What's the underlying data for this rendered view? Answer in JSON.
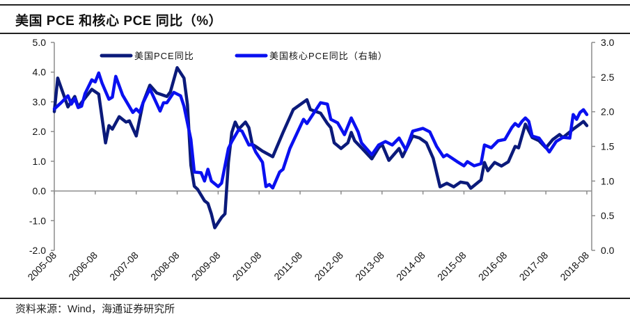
{
  "title": "美国 PCE 和核心 PCE 同比（%）",
  "source": "资料来源：Wind，海通证券研究所",
  "chart_data": {
    "type": "line",
    "title": "美国 PCE 和核心 PCE 同比（%）",
    "xlabel": "",
    "ylabel": "",
    "x_range": [
      "2005-08",
      "2018-08"
    ],
    "x_ticks": [
      "2005-08",
      "2006-08",
      "2007-08",
      "2008-08",
      "2009-08",
      "2010-08",
      "2011-08",
      "2012-08",
      "2013-08",
      "2014-08",
      "2015-08",
      "2016-08",
      "2017-08",
      "2018-08"
    ],
    "y_left": {
      "ylim": [
        -2,
        5
      ],
      "ticks": [
        "5.0",
        "4.0",
        "3.0",
        "2.0",
        "1.0",
        "0.0",
        "-1.0",
        "-2.0"
      ]
    },
    "y_right": {
      "ylim": [
        0,
        3
      ],
      "ticks": [
        "3.0",
        "2.5",
        "2.0",
        "1.5",
        "1.0",
        "0.5",
        "0.0"
      ]
    },
    "grid": false,
    "legend_position": "top",
    "series": [
      {
        "name": "美国PCE同比",
        "axis": "left",
        "color": "#0b1a7a",
        "points": [
          [
            "2005-08",
            2.67
          ],
          [
            "2005-09",
            3.8
          ],
          [
            "2005-12",
            2.83
          ],
          [
            "2006-02",
            3.18
          ],
          [
            "2006-03",
            2.83
          ],
          [
            "2006-07",
            3.42
          ],
          [
            "2006-09",
            3.26
          ],
          [
            "2006-11",
            1.62
          ],
          [
            "2006-12",
            2.2
          ],
          [
            "2007-01",
            2.08
          ],
          [
            "2007-03",
            2.5
          ],
          [
            "2007-05",
            2.32
          ],
          [
            "2007-06",
            2.36
          ],
          [
            "2007-08",
            1.85
          ],
          [
            "2007-10",
            2.97
          ],
          [
            "2007-12",
            3.56
          ],
          [
            "2008-02",
            3.3
          ],
          [
            "2008-05",
            3.18
          ],
          [
            "2008-06",
            3.33
          ],
          [
            "2008-08",
            4.15
          ],
          [
            "2008-10",
            3.8
          ],
          [
            "2008-11",
            2.9
          ],
          [
            "2008-12",
            0.87
          ],
          [
            "2009-01",
            0.16
          ],
          [
            "2009-02",
            0.05
          ],
          [
            "2009-04",
            -0.33
          ],
          [
            "2009-05",
            -0.42
          ],
          [
            "2009-06",
            -0.77
          ],
          [
            "2009-07",
            -1.24
          ],
          [
            "2009-09",
            -0.89
          ],
          [
            "2009-10",
            -0.77
          ],
          [
            "2009-11",
            0.96
          ],
          [
            "2009-12",
            1.97
          ],
          [
            "2010-01",
            2.32
          ],
          [
            "2010-02",
            2.08
          ],
          [
            "2010-04",
            2.32
          ],
          [
            "2010-05",
            2.13
          ],
          [
            "2010-06",
            1.57
          ],
          [
            "2010-07",
            1.5
          ],
          [
            "2010-09",
            1.34
          ],
          [
            "2010-12",
            1.15
          ],
          [
            "2011-01",
            1.43
          ],
          [
            "2011-03",
            1.97
          ],
          [
            "2011-06",
            2.74
          ],
          [
            "2011-10",
            3.07
          ],
          [
            "2011-11",
            2.74
          ],
          [
            "2012-02",
            2.62
          ],
          [
            "2012-04",
            2.27
          ],
          [
            "2012-05",
            2.13
          ],
          [
            "2012-06",
            1.62
          ],
          [
            "2012-08",
            1.43
          ],
          [
            "2012-10",
            1.62
          ],
          [
            "2012-11",
            1.97
          ],
          [
            "2012-12",
            1.69
          ],
          [
            "2013-02",
            1.45
          ],
          [
            "2013-05",
            1.08
          ],
          [
            "2013-07",
            1.45
          ],
          [
            "2013-08",
            1.57
          ],
          [
            "2013-10",
            1.03
          ],
          [
            "2014-01",
            1.43
          ],
          [
            "2014-02",
            1.15
          ],
          [
            "2014-05",
            1.85
          ],
          [
            "2014-07",
            1.78
          ],
          [
            "2014-09",
            1.62
          ],
          [
            "2014-11",
            1.1
          ],
          [
            "2015-01",
            0.14
          ],
          [
            "2015-03",
            0.26
          ],
          [
            "2015-05",
            0.14
          ],
          [
            "2015-07",
            0.3
          ],
          [
            "2015-09",
            0.26
          ],
          [
            "2015-10",
            0.09
          ],
          [
            "2016-01",
            0.37
          ],
          [
            "2016-02",
            0.96
          ],
          [
            "2016-03",
            0.68
          ],
          [
            "2016-05",
            0.96
          ],
          [
            "2016-07",
            0.84
          ],
          [
            "2016-09",
            0.98
          ],
          [
            "2016-11",
            1.5
          ],
          [
            "2016-12",
            1.45
          ],
          [
            "2017-02",
            2.25
          ],
          [
            "2017-04",
            1.8
          ],
          [
            "2017-06",
            1.69
          ],
          [
            "2017-08",
            1.45
          ],
          [
            "2017-10",
            1.73
          ],
          [
            "2017-12",
            1.9
          ],
          [
            "2018-01",
            1.8
          ],
          [
            "2018-04",
            2.08
          ],
          [
            "2018-06",
            2.25
          ],
          [
            "2018-07",
            2.34
          ],
          [
            "2018-08",
            2.2
          ]
        ]
      },
      {
        "name": "美国核心PCE同比（右轴）",
        "axis": "right",
        "color": "#0a10f0",
        "points": [
          [
            "2005-08",
            2.04
          ],
          [
            "2005-10",
            2.13
          ],
          [
            "2005-12",
            2.23
          ],
          [
            "2006-01",
            2.11
          ],
          [
            "2006-02",
            2.19
          ],
          [
            "2006-03",
            2.06
          ],
          [
            "2006-04",
            2.08
          ],
          [
            "2006-05",
            2.26
          ],
          [
            "2006-07",
            2.46
          ],
          [
            "2006-08",
            2.43
          ],
          [
            "2006-09",
            2.56
          ],
          [
            "2006-10",
            2.41
          ],
          [
            "2006-12",
            2.18
          ],
          [
            "2007-01",
            2.21
          ],
          [
            "2007-02",
            2.51
          ],
          [
            "2007-04",
            2.24
          ],
          [
            "2007-07",
            1.99
          ],
          [
            "2007-08",
            2.04
          ],
          [
            "2007-09",
            1.99
          ],
          [
            "2007-10",
            2.13
          ],
          [
            "2007-12",
            2.33
          ],
          [
            "2008-03",
            2.01
          ],
          [
            "2008-04",
            2.13
          ],
          [
            "2008-05",
            2.13
          ],
          [
            "2008-07",
            2.28
          ],
          [
            "2008-09",
            2.23
          ],
          [
            "2008-10",
            2.08
          ],
          [
            "2008-12",
            1.6
          ],
          [
            "2009-01",
            1.13
          ],
          [
            "2009-03",
            1.12
          ],
          [
            "2009-04",
            1.0
          ],
          [
            "2009-05",
            1.17
          ],
          [
            "2009-06",
            1.0
          ],
          [
            "2009-08",
            0.92
          ],
          [
            "2009-09",
            0.97
          ],
          [
            "2009-11",
            1.47
          ],
          [
            "2009-12",
            1.57
          ],
          [
            "2010-02",
            1.74
          ],
          [
            "2010-03",
            1.72
          ],
          [
            "2010-05",
            1.52
          ],
          [
            "2010-06",
            1.53
          ],
          [
            "2010-07",
            1.42
          ],
          [
            "2010-09",
            1.27
          ],
          [
            "2010-10",
            0.92
          ],
          [
            "2010-11",
            0.95
          ],
          [
            "2010-12",
            0.9
          ],
          [
            "2011-02",
            1.13
          ],
          [
            "2011-03",
            1.17
          ],
          [
            "2011-05",
            1.47
          ],
          [
            "2011-09",
            1.89
          ],
          [
            "2011-10",
            1.83
          ],
          [
            "2012-02",
            2.13
          ],
          [
            "2012-04",
            2.11
          ],
          [
            "2012-05",
            1.89
          ],
          [
            "2012-07",
            1.84
          ],
          [
            "2012-09",
            1.67
          ],
          [
            "2012-11",
            1.91
          ],
          [
            "2013-01",
            1.71
          ],
          [
            "2013-02",
            1.55
          ],
          [
            "2013-05",
            1.38
          ],
          [
            "2013-07",
            1.52
          ],
          [
            "2013-09",
            1.57
          ],
          [
            "2013-11",
            1.52
          ],
          [
            "2014-01",
            1.62
          ],
          [
            "2014-03",
            1.45
          ],
          [
            "2014-05",
            1.72
          ],
          [
            "2014-08",
            1.76
          ],
          [
            "2014-10",
            1.71
          ],
          [
            "2014-12",
            1.5
          ],
          [
            "2015-02",
            1.35
          ],
          [
            "2015-03",
            1.38
          ],
          [
            "2015-06",
            1.28
          ],
          [
            "2015-08",
            1.22
          ],
          [
            "2015-09",
            1.28
          ],
          [
            "2015-11",
            1.22
          ],
          [
            "2016-01",
            1.25
          ],
          [
            "2016-02",
            1.52
          ],
          [
            "2016-04",
            1.48
          ],
          [
            "2016-06",
            1.58
          ],
          [
            "2016-08",
            1.6
          ],
          [
            "2016-10",
            1.77
          ],
          [
            "2016-11",
            1.83
          ],
          [
            "2016-12",
            1.79
          ],
          [
            "2017-01",
            1.86
          ],
          [
            "2017-02",
            1.91
          ],
          [
            "2017-03",
            1.86
          ],
          [
            "2017-04",
            1.65
          ],
          [
            "2017-06",
            1.62
          ],
          [
            "2017-09",
            1.42
          ],
          [
            "2017-11",
            1.57
          ],
          [
            "2018-01",
            1.63
          ],
          [
            "2018-03",
            1.62
          ],
          [
            "2018-04",
            1.96
          ],
          [
            "2018-05",
            1.89
          ],
          [
            "2018-06",
            1.99
          ],
          [
            "2018-07",
            2.03
          ],
          [
            "2018-08",
            1.96
          ]
        ]
      }
    ]
  }
}
